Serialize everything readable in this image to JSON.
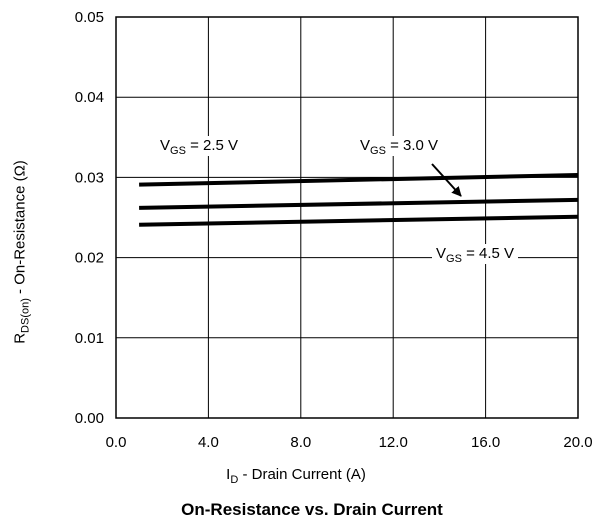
{
  "chart_data": {
    "type": "line",
    "title": "On-Resistance vs. Drain Current",
    "xlabel": {
      "main": "I",
      "sub": "D",
      "rest": " - Drain Current (A)"
    },
    "ylabel": {
      "main": "R",
      "sub": "DS(on)",
      "rest": " - On-Resistance (Ω)"
    },
    "xlim": [
      0,
      20
    ],
    "ylim": [
      0,
      0.05
    ],
    "xticks": [
      "0.0",
      "4.0",
      "8.0",
      "12.0",
      "16.0",
      "20.0"
    ],
    "yticks": [
      "0.00",
      "0.01",
      "0.02",
      "0.03",
      "0.04",
      "0.05"
    ],
    "grid": true,
    "series": [
      {
        "name": {
          "main": "V",
          "sub": "GS",
          "rest": " = 2.5 V"
        },
        "x": [
          1,
          20
        ],
        "y": [
          0.0291,
          0.0303
        ]
      },
      {
        "name": {
          "main": "V",
          "sub": "GS",
          "rest": " = 3.0 V"
        },
        "x": [
          1,
          20
        ],
        "y": [
          0.0262,
          0.0272
        ]
      },
      {
        "name": {
          "main": "V",
          "sub": "GS",
          "rest": " = 4.5 V"
        },
        "x": [
          1,
          20
        ],
        "y": [
          0.0241,
          0.0251
        ]
      }
    ]
  }
}
